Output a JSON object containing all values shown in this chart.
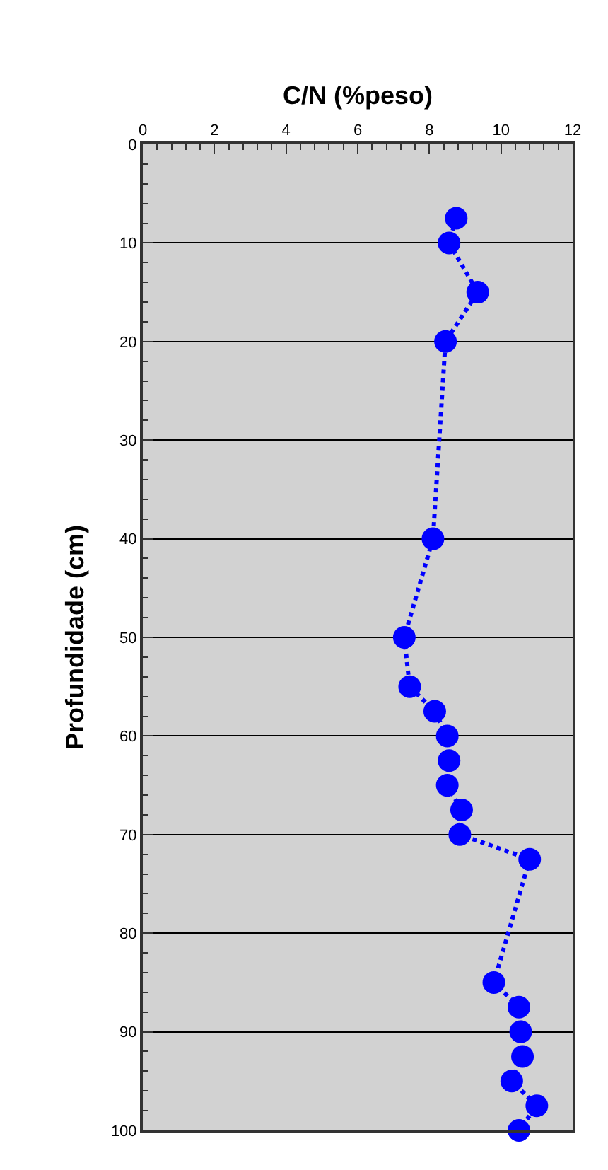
{
  "chart_data": {
    "type": "line",
    "xlabel": "C/N (%peso)",
    "ylabel": "Profundidade (cm)",
    "x": [
      8.75,
      8.55,
      9.35,
      8.45,
      8.1,
      7.3,
      7.45,
      8.15,
      8.5,
      8.55,
      8.5,
      8.9,
      8.85,
      10.8,
      9.8,
      10.5,
      10.55,
      10.6,
      10.3,
      11.0,
      10.5
    ],
    "series": [
      {
        "color": "#0000ff",
        "values": [
          7.5,
          10,
          15,
          20,
          40,
          50,
          55,
          57.5,
          60,
          62.5,
          65,
          67.5,
          70,
          72.5,
          85,
          87.5,
          90,
          92.5,
          95,
          97.5,
          100
        ]
      }
    ],
    "xlim": [
      0,
      12
    ],
    "xticks": [
      0,
      2,
      4,
      6,
      8,
      10,
      12
    ],
    "ylim": [
      100,
      0
    ],
    "yticks": [
      0,
      10,
      20,
      30,
      40,
      50,
      60,
      70,
      80,
      90,
      100
    ],
    "grid": "y",
    "marker": "circle",
    "line_style": "dotted"
  }
}
